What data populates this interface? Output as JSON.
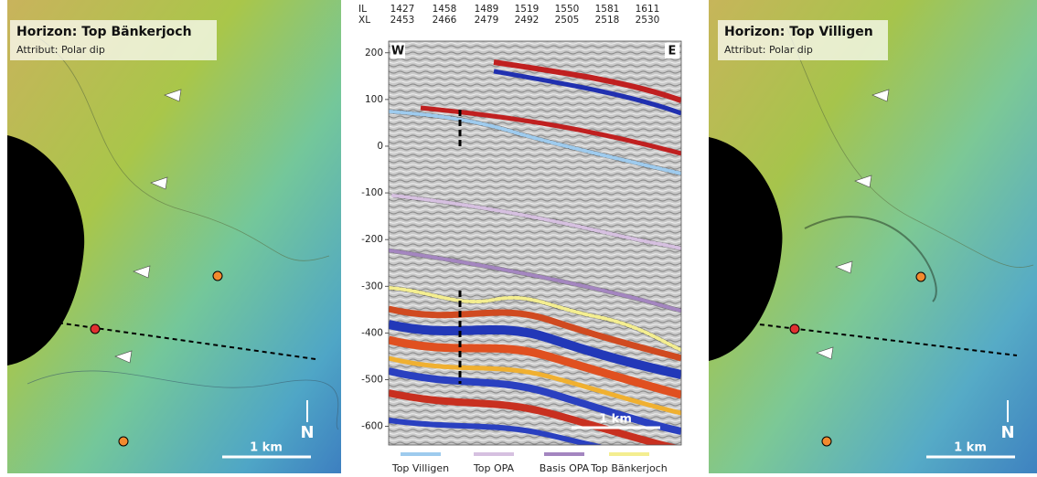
{
  "left_panel": {
    "title": "Horizon: Top Bänkerjoch",
    "subtitle": "Attribut: Polar dip",
    "scale_label": "1 km",
    "north": "N"
  },
  "section": {
    "il_label": "IL",
    "xl_label": "XL",
    "il": [
      1427,
      1458,
      1489,
      1519,
      1550,
      1581,
      1611
    ],
    "xl": [
      2453,
      2466,
      2479,
      2492,
      2505,
      2518,
      2530
    ],
    "west": "W",
    "east": "E",
    "ylim": [
      -640,
      225
    ],
    "yticks": [
      200,
      100,
      0,
      -100,
      -200,
      -300,
      -400,
      -500,
      -600
    ],
    "scale_label": "1 km",
    "legend": [
      {
        "name": "Top Villigen",
        "color": "#9ecbee"
      },
      {
        "name": "Top OPA",
        "color": "#d6c0e0"
      },
      {
        "name": "Basis OPA",
        "color": "#a486c0"
      },
      {
        "name": "Top Bänkerjoch",
        "color": "#f4ee90"
      }
    ]
  },
  "right_panel": {
    "title": "Horizon: Top Villigen",
    "subtitle": "Attribut: Polar dip",
    "scale_label": "1 km",
    "north": "N"
  }
}
